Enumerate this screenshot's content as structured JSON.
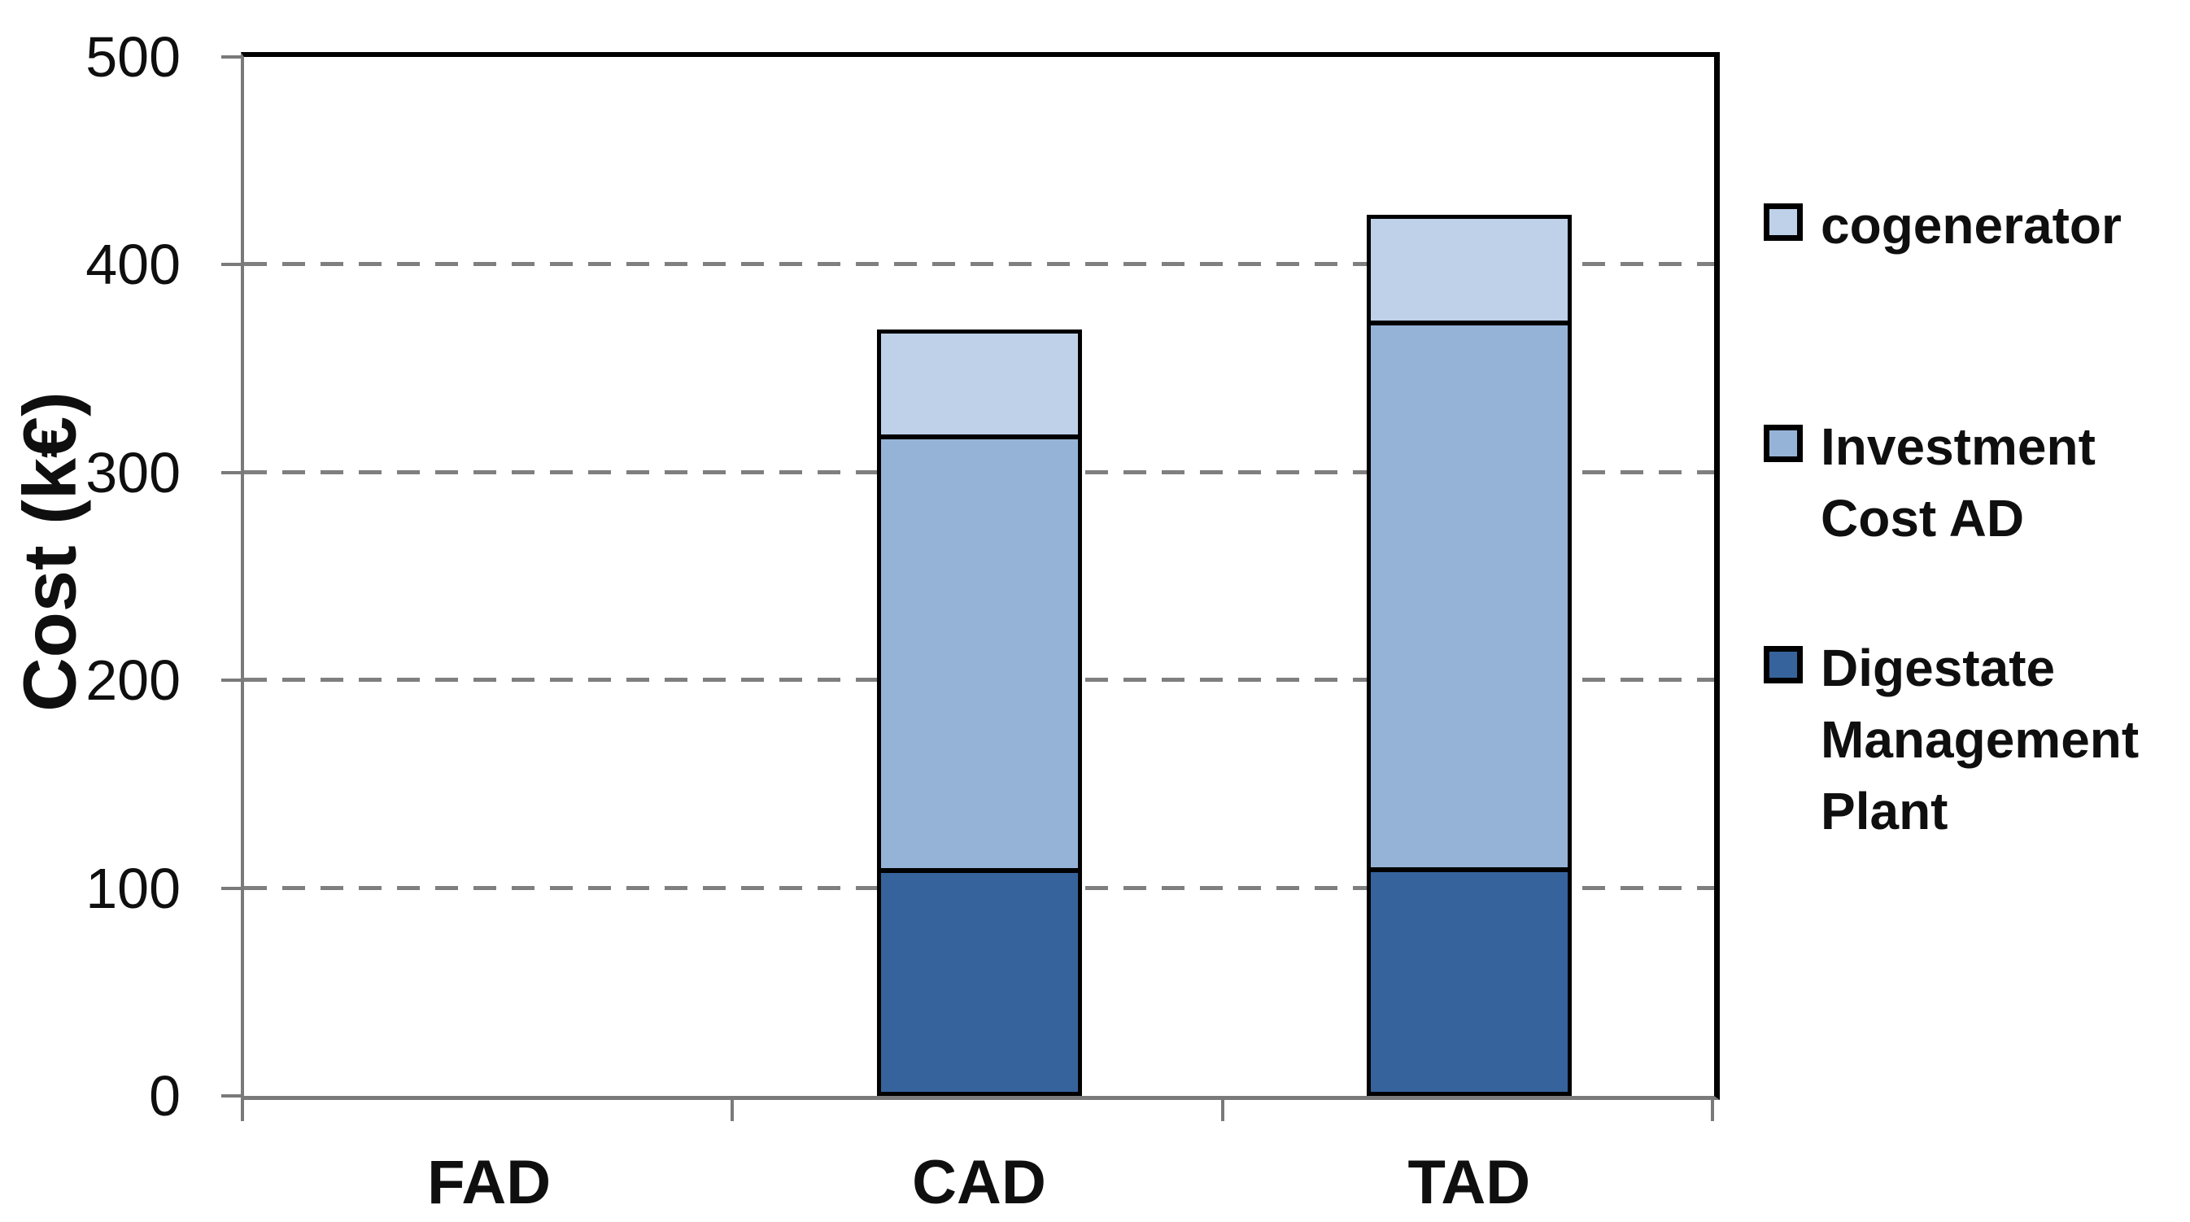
{
  "chart_data": {
    "type": "bar",
    "stacked": true,
    "title": "",
    "ylabel": "Cost (k€)",
    "xlabel": "",
    "ylim": [
      0,
      500
    ],
    "yticks": [
      0,
      100,
      200,
      300,
      400,
      500
    ],
    "gridlines": [
      100,
      200,
      300,
      400
    ],
    "grid_style": "dashed",
    "legend_position": "right",
    "categories": [
      "FAD",
      "CAD",
      "TAD"
    ],
    "series": [
      {
        "name": "Digestate Management Plant",
        "color": "#36639B",
        "values": [
          0,
          108,
          108
        ]
      },
      {
        "name": "Investment Cost AD",
        "color": "#95B3D7",
        "values": [
          0,
          211,
          266
        ]
      },
      {
        "name": "cogenerator",
        "color": "#BED1E9",
        "values": [
          0,
          50,
          50
        ]
      }
    ],
    "legend": [
      {
        "name": "cogenerator",
        "color": "#BED1E9",
        "lines": [
          "cogenerator"
        ]
      },
      {
        "name": "Investment Cost AD",
        "color": "#95B3D7",
        "lines": [
          "Investment",
          "Cost AD"
        ]
      },
      {
        "name": "Digestate Management Plant",
        "color": "#36639B",
        "lines": [
          "Digestate",
          "Management",
          "Plant"
        ]
      }
    ],
    "colors": {
      "axis": "#7a7a7a",
      "grid": "#7f7f7f",
      "plot_border": "#000000",
      "text": "#0f0f0f"
    }
  }
}
